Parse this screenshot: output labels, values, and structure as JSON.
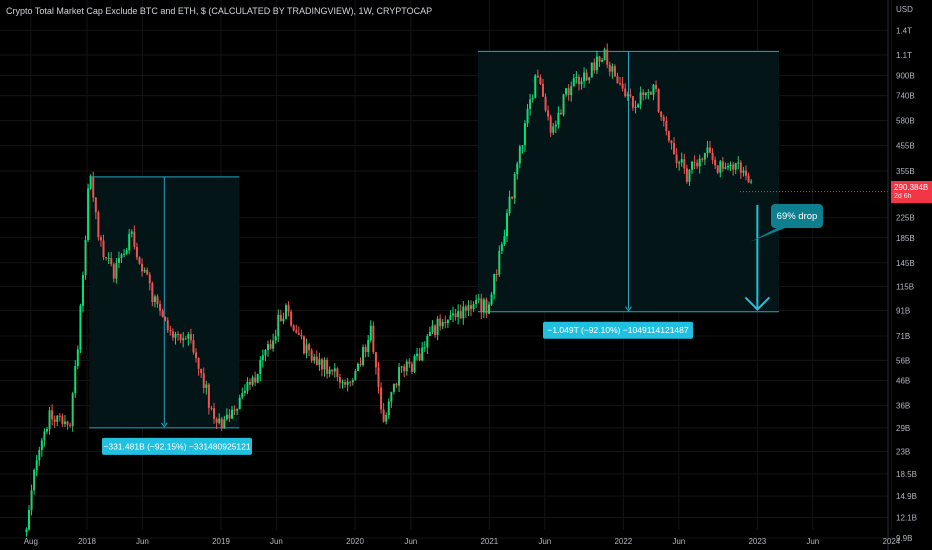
{
  "header": {
    "title": "Crypto Total Market Cap Exclude BTC and ETH, $ (CALCULATED BY TRADINGVIEW), 1W, CRYPTOCAP"
  },
  "colors": {
    "up": "#26a69a",
    "up_bright": "#00e676",
    "down": "#ef5350",
    "box_border": "#22a7c4",
    "box_fill": "#031516",
    "label_bg": "#22c0e0",
    "callout_bg": "#0e7f8f",
    "grid": "#141414",
    "axis_text": "#b2b5be",
    "last_price": "#f23645"
  },
  "chart_data": {
    "type": "candlestick",
    "title": "Crypto Total Market Cap Exclude BTC and ETH, $ (CALCULATED BY TRADINGVIEW), 1W, CRYPTOCAP",
    "y_scale": "log",
    "y_unit": "USD",
    "y_ticks": [
      "1.4T",
      "1.1T",
      "900B",
      "740B",
      "580B",
      "455B",
      "355B",
      "225B",
      "185B",
      "145B",
      "115B",
      "91B",
      "71B",
      "56B",
      "46B",
      "36B",
      "29B",
      "23B",
      "18.5B",
      "14.9B",
      "12.1B",
      "9.9B"
    ],
    "x_ticks": [
      "Aug",
      "2018",
      "Jun",
      "2019",
      "Jun",
      "2020",
      "Jun",
      "2021",
      "Jun",
      "2022",
      "Jun",
      "2023",
      "Jun",
      "2024"
    ],
    "x_range": [
      "2017-07",
      "2024-04"
    ],
    "last_price": "290.384B",
    "countdown": "2d 6h",
    "anchors": [
      {
        "date": "2017-07-20",
        "close": 10.5
      },
      {
        "date": "2017-08-20",
        "close": 24
      },
      {
        "date": "2017-09-20",
        "close": 32
      },
      {
        "date": "2017-11-15",
        "close": 31
      },
      {
        "date": "2017-12-10",
        "close": 75
      },
      {
        "date": "2018-01-07",
        "close": 335
      },
      {
        "date": "2018-02-10",
        "close": 165
      },
      {
        "date": "2018-03-15",
        "close": 135
      },
      {
        "date": "2018-05-05",
        "close": 190
      },
      {
        "date": "2018-07-01",
        "close": 100
      },
      {
        "date": "2018-08-15",
        "close": 72
      },
      {
        "date": "2018-10-01",
        "close": 70
      },
      {
        "date": "2018-11-25",
        "close": 40
      },
      {
        "date": "2018-12-15",
        "close": 29
      },
      {
        "date": "2019-02-10",
        "close": 35
      },
      {
        "date": "2019-04-05",
        "close": 48
      },
      {
        "date": "2019-06-25",
        "close": 95
      },
      {
        "date": "2019-08-15",
        "close": 65
      },
      {
        "date": "2019-10-20",
        "close": 52
      },
      {
        "date": "2019-12-20",
        "close": 42
      },
      {
        "date": "2020-02-15",
        "close": 75
      },
      {
        "date": "2020-03-15",
        "close": 32
      },
      {
        "date": "2020-04-25",
        "close": 48
      },
      {
        "date": "2020-06-15",
        "close": 56
      },
      {
        "date": "2020-08-15",
        "close": 80
      },
      {
        "date": "2020-10-01",
        "close": 90
      },
      {
        "date": "2020-11-15",
        "close": 95
      },
      {
        "date": "2020-12-31",
        "close": 95
      },
      {
        "date": "2021-02-15",
        "close": 215
      },
      {
        "date": "2021-04-10",
        "close": 560
      },
      {
        "date": "2021-05-10",
        "close": 960
      },
      {
        "date": "2021-06-20",
        "close": 520
      },
      {
        "date": "2021-08-15",
        "close": 880
      },
      {
        "date": "2021-09-15",
        "close": 900
      },
      {
        "date": "2021-11-07",
        "close": 1120
      },
      {
        "date": "2021-12-20",
        "close": 820
      },
      {
        "date": "2022-02-01",
        "close": 680
      },
      {
        "date": "2022-03-25",
        "close": 790
      },
      {
        "date": "2022-05-15",
        "close": 450
      },
      {
        "date": "2022-06-20",
        "close": 340
      },
      {
        "date": "2022-08-15",
        "close": 420
      },
      {
        "date": "2022-10-01",
        "close": 350
      },
      {
        "date": "2022-11-07",
        "close": 390
      },
      {
        "date": "2022-12-20",
        "close": 290
      }
    ],
    "annotations": [
      {
        "type": "price_range",
        "start": "2018-01-07",
        "end": "2019-02-20",
        "high": 335,
        "low": 29,
        "label": "−331.481B (−92.15%) −331480925121"
      },
      {
        "type": "price_range",
        "start": "2020-12-01",
        "end": "2023-03-01",
        "high": 1140,
        "low": 90,
        "label": "−1.049T (−92.10%) −1049114121487"
      },
      {
        "type": "arrow",
        "from_date": "2023-01-01",
        "from_value": 255,
        "to_date": "2023-01-01",
        "to_value": 92
      },
      {
        "type": "callout",
        "text": "69% drop"
      }
    ]
  }
}
